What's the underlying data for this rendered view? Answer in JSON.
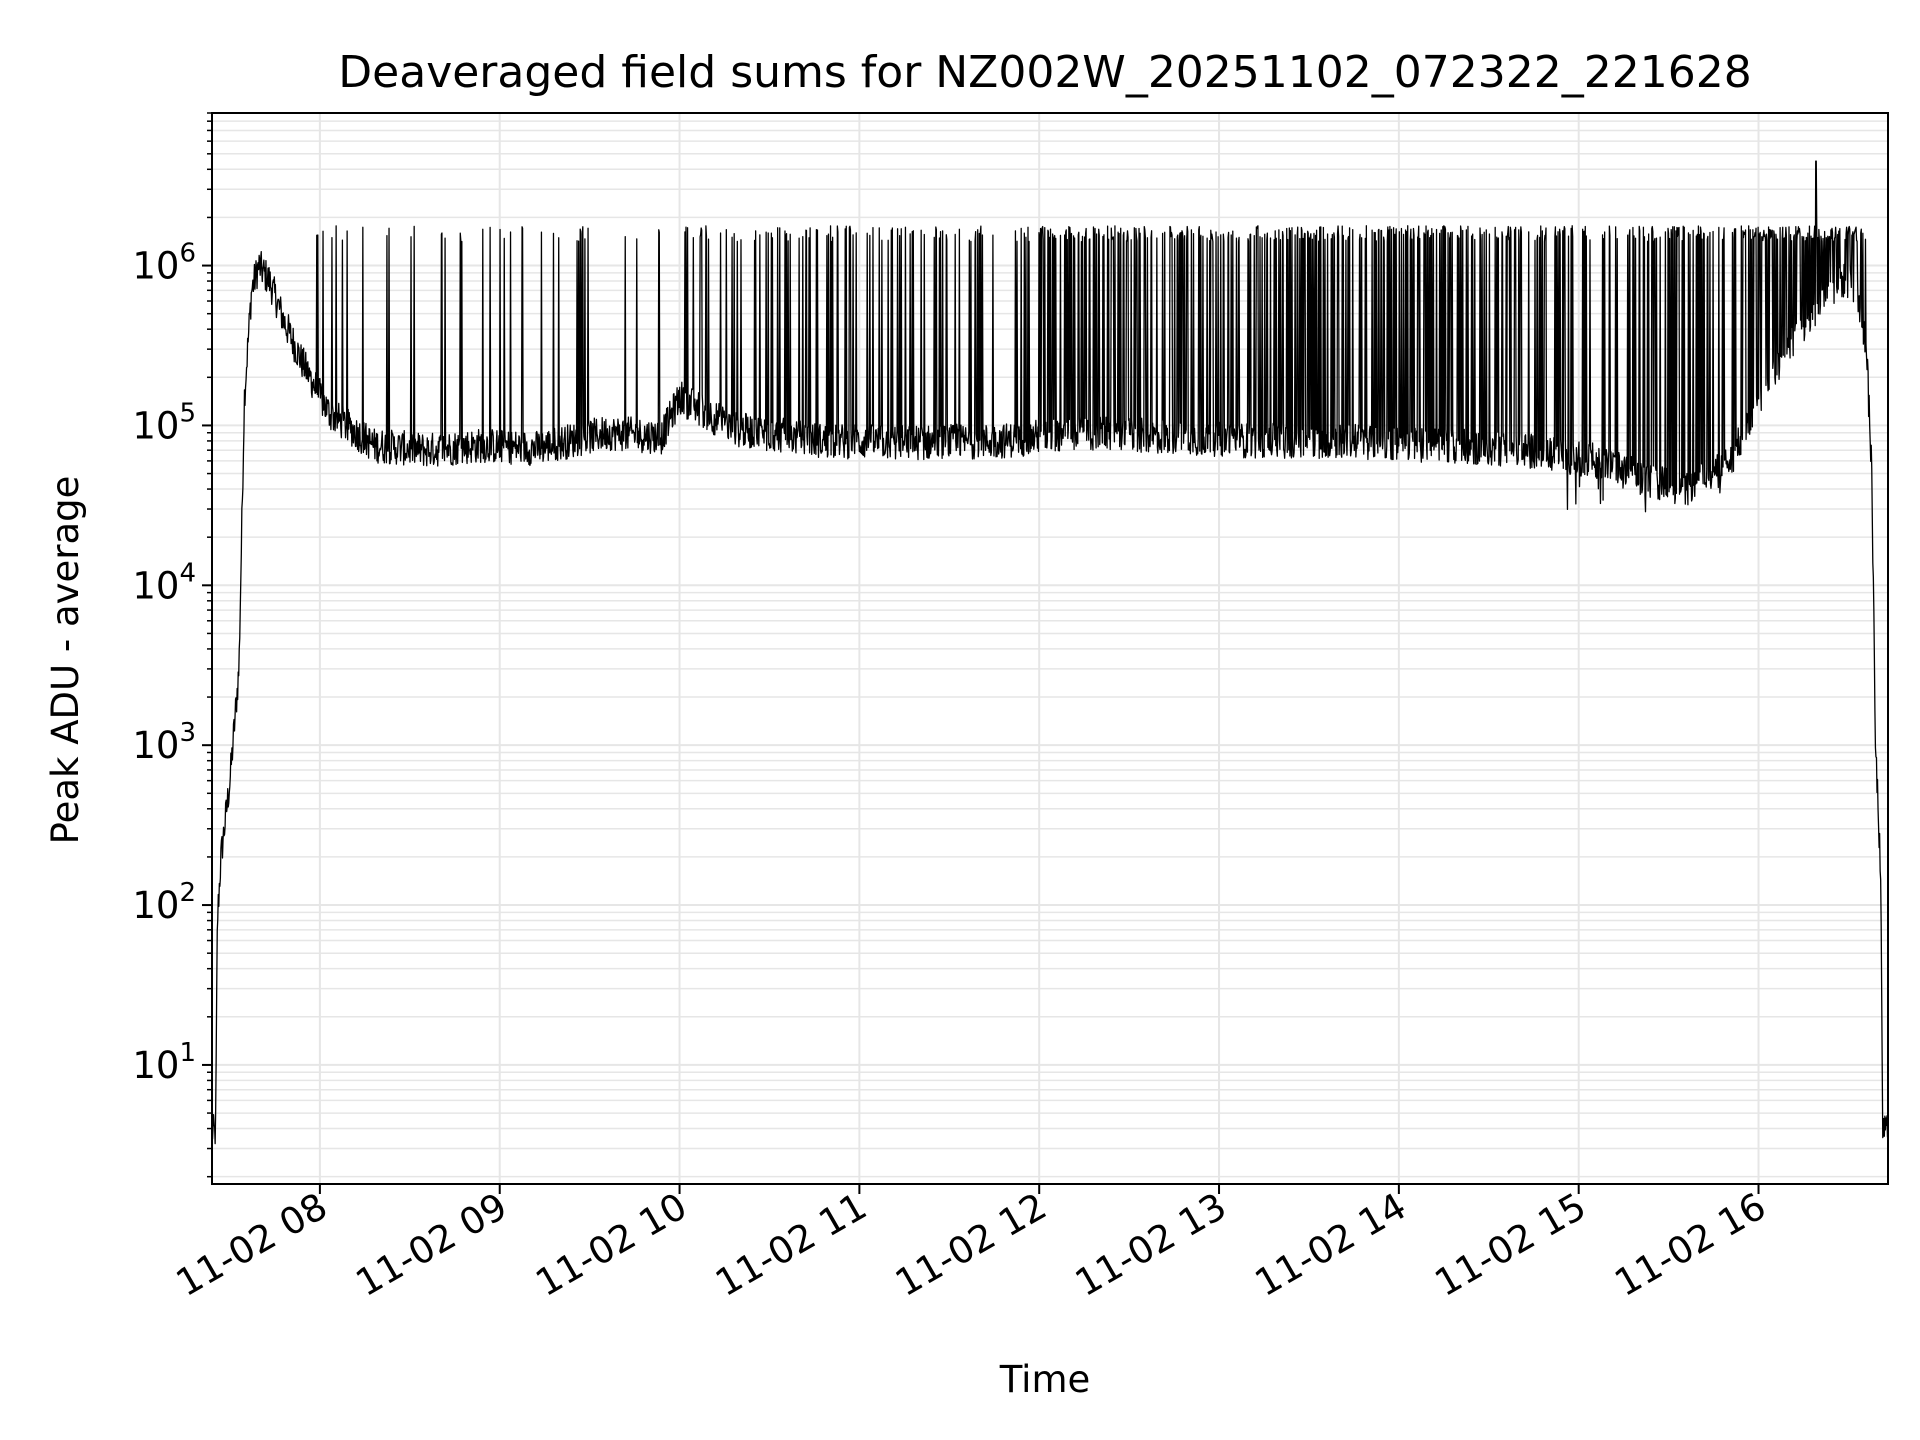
{
  "chart_data": {
    "type": "line",
    "title": "Deaveraged field sums for NZ002W_20251102_072322_221628",
    "xlabel": "Time",
    "ylabel": "Peak ADU - average",
    "yscale": "log",
    "xlim": [
      7.4,
      16.72
    ],
    "ylim": [
      1.8,
      9000000
    ],
    "x_ticks": [
      {
        "value": 8,
        "label": "11-02 08"
      },
      {
        "value": 9,
        "label": "11-02 09"
      },
      {
        "value": 10,
        "label": "11-02 10"
      },
      {
        "value": 11,
        "label": "11-02 11"
      },
      {
        "value": 12,
        "label": "11-02 12"
      },
      {
        "value": 13,
        "label": "11-02 13"
      },
      {
        "value": 14,
        "label": "11-02 14"
      },
      {
        "value": 15,
        "label": "11-02 15"
      },
      {
        "value": 16,
        "label": "11-02 16"
      }
    ],
    "y_ticks": [
      {
        "value": 10,
        "base": "10",
        "exp": "1"
      },
      {
        "value": 100,
        "base": "10",
        "exp": "2"
      },
      {
        "value": 1000,
        "base": "10",
        "exp": "3"
      },
      {
        "value": 10000,
        "base": "10",
        "exp": "4"
      },
      {
        "value": 100000,
        "base": "10",
        "exp": "5"
      },
      {
        "value": 1000000,
        "base": "10",
        "exp": "6"
      }
    ],
    "grid": true,
    "line_color": "#000000",
    "grid_color": "#e6e6e6",
    "series": [
      {
        "name": "Peak ADU - average",
        "envelope_x": [
          7.4,
          7.42,
          7.43,
          7.45,
          7.5,
          7.55,
          7.58,
          7.62,
          7.66,
          7.72,
          7.8,
          7.9,
          8.05,
          8.3,
          8.6,
          8.9,
          9.2,
          9.6,
          9.9,
          10.0,
          10.3,
          10.8,
          11.3,
          11.8,
          12.2,
          12.7,
          13.2,
          13.7,
          14.2,
          14.7,
          15.1,
          15.4,
          15.6,
          15.85,
          16.0,
          16.2,
          16.35,
          16.45,
          16.5,
          16.55,
          16.6,
          16.63,
          16.65,
          16.67,
          16.68,
          16.69,
          16.72
        ],
        "envelope_y": [
          3.8,
          3.8,
          80,
          200,
          600,
          3000,
          150000,
          700000,
          1000000,
          800000,
          450000,
          250000,
          120000,
          75000,
          70000,
          75000,
          72000,
          90000,
          85000,
          150000,
          95000,
          80000,
          78000,
          80000,
          90000,
          85000,
          80000,
          80000,
          75000,
          70000,
          60000,
          45000,
          40000,
          60000,
          150000,
          350000,
          600000,
          800000,
          800000,
          700000,
          300000,
          50000,
          1000,
          300,
          120,
          4,
          4
        ],
        "spike_top": 1600000,
        "max_spike": 4500000,
        "min_dip": 28000
      }
    ]
  }
}
